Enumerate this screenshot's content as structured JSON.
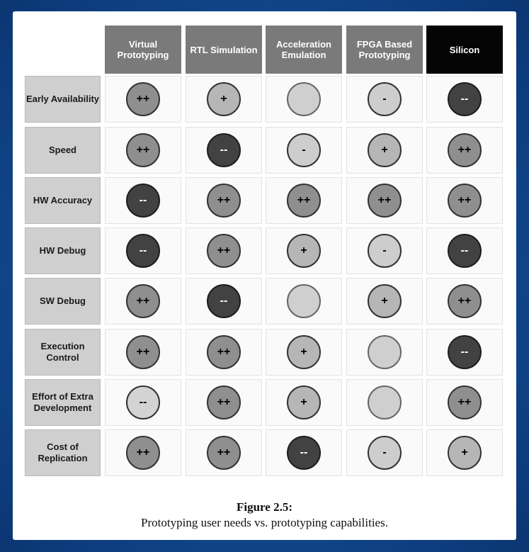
{
  "columns": [
    "Virtual Prototyping",
    "RTL Simulation",
    "Acceleration Emulation",
    "FPGA Based Prototyping",
    "Silicon"
  ],
  "rows": [
    {
      "label": "Early Availability",
      "ratings": [
        "++",
        "+",
        "",
        "-",
        "--"
      ]
    },
    {
      "label": "Speed",
      "ratings": [
        "++",
        "--",
        "-",
        "+",
        "++"
      ]
    },
    {
      "label": "HW Accuracy",
      "ratings": [
        "--",
        "++",
        "++",
        "++",
        "++"
      ]
    },
    {
      "label": "HW Debug",
      "ratings": [
        "--",
        "++",
        "+",
        "-",
        "--"
      ]
    },
    {
      "label": "SW Debug",
      "ratings": [
        "++",
        "--",
        "",
        "+",
        "++"
      ]
    },
    {
      "label": "Execution Control",
      "ratings": [
        "++",
        "++",
        "+",
        "",
        "--"
      ]
    },
    {
      "label": "Effort of Extra Development",
      "ratings": [
        "--",
        "++",
        "+",
        "",
        "++"
      ]
    },
    {
      "label": "Cost of Replication",
      "ratings": [
        "++",
        "++",
        "--",
        "-",
        "+"
      ]
    }
  ],
  "caption": {
    "title": "Figure 2.5:",
    "text": "Prototyping user needs vs. prototyping capabilities."
  },
  "colors": {
    "header_gray": "#7a7a7a",
    "header_black": "#050505",
    "background_blue": "#124a91"
  }
}
